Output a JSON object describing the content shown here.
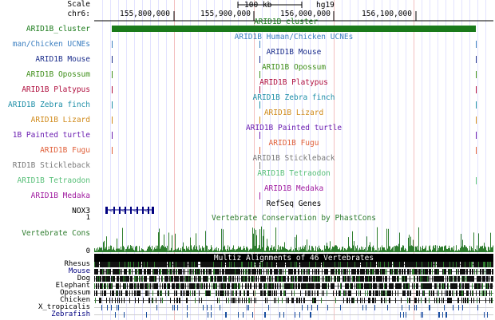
{
  "ruler": {
    "scale_label": "Scale",
    "chrom_label": "chr6:",
    "scale_text": "100 kb",
    "assembly": "hg19",
    "positions": [
      "155,800,000",
      "155,900,000",
      "156,000,000",
      "156,100,000"
    ]
  },
  "tracks": [
    {
      "label": "ARID1B_cluster",
      "title": "ARID1B_cluster",
      "color": "#1a7a1a"
    },
    {
      "label": "man/Chicken UCNEs",
      "title": "ARID1B Human/Chicken UCNEs",
      "color": "#3a7ec0"
    },
    {
      "label": "ARID1B Mouse",
      "title": "ARID1B Mouse",
      "color": "#1c2e8c"
    },
    {
      "label": "ARID1B Opossum",
      "title": "ARID1B Opossum",
      "color": "#3f8f1a"
    },
    {
      "label": "ARID1B Platypus",
      "title": "ARID1B Platypus",
      "color": "#b0103f"
    },
    {
      "label": "ARID1B Zebra finch",
      "title": "ARID1B Zebra finch",
      "color": "#1f8fa8"
    },
    {
      "label": "ARID1B Lizard",
      "title": "ARID1B Lizard",
      "color": "#d08a1a"
    },
    {
      "label": "1B Painted turtle",
      "title": "ARID1B Painted turtle",
      "color": "#6a1cb0"
    },
    {
      "label": "ARID1B Fugu",
      "title": "ARID1B Fugu",
      "color": "#e0603a"
    },
    {
      "label": "RID1B Stickleback",
      "title": "ARID1B Stickleback",
      "color": "#7a7a7a"
    },
    {
      "label": "ARID1B Tetraodon",
      "title": "ARID1B Tetraodon",
      "color": "#5ac07a"
    },
    {
      "label": "ARID1B Medaka",
      "title": "ARID1B Medaka",
      "color": "#a01ca0"
    }
  ],
  "refseq": {
    "title": "RefSeq Genes",
    "gene": "NOX3"
  },
  "conservation": {
    "title": "Vertebrate Conservation by PhastCons",
    "label": "Vertebrate Cons",
    "ymax": "1",
    "ymin": "0"
  },
  "multiz": {
    "title": "Multiz Alignments of 46 Vertebrates",
    "species": [
      "Rhesus",
      "Mouse",
      "Dog",
      "Elephant",
      "Opossum",
      "Chicken",
      "X_tropicalis",
      "Zebrafish"
    ]
  },
  "colors": {
    "gridline": "#e3e3ff",
    "cons_green": "#2e7d2e",
    "multiz_dark": "#000000",
    "gene_blue": "#000080"
  }
}
